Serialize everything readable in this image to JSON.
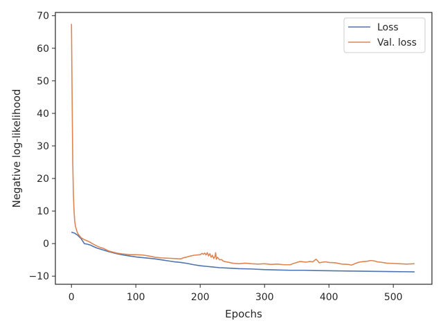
{
  "chart_data": {
    "type": "line",
    "title": "",
    "xlabel": "Epochs",
    "ylabel": "Negative log-likelihood",
    "xlim": [
      -25,
      560
    ],
    "ylim": [
      -12.5,
      71
    ],
    "xticks": [
      "0",
      "100",
      "200",
      "300",
      "400",
      "500"
    ],
    "xtick_values": [
      0,
      100,
      200,
      300,
      400,
      500
    ],
    "yticks": [
      "−10",
      "0",
      "10",
      "20",
      "30",
      "40",
      "50",
      "60",
      "70"
    ],
    "ytick_values": [
      -10,
      0,
      10,
      20,
      30,
      40,
      50,
      60,
      70
    ],
    "grid": false,
    "legend_position": "upper right",
    "series": [
      {
        "name": "Loss",
        "color": "#4c72b0",
        "points": [
          [
            0,
            3.5
          ],
          [
            5,
            3.2
          ],
          [
            10,
            2.5
          ],
          [
            15,
            1.5
          ],
          [
            20,
            0
          ],
          [
            25,
            -0.2
          ],
          [
            30,
            -0.5
          ],
          [
            35,
            -1.0
          ],
          [
            40,
            -1.4
          ],
          [
            50,
            -2.0
          ],
          [
            60,
            -2.6
          ],
          [
            70,
            -3.1
          ],
          [
            80,
            -3.5
          ],
          [
            90,
            -3.8
          ],
          [
            100,
            -4.1
          ],
          [
            110,
            -4.3
          ],
          [
            120,
            -4.5
          ],
          [
            130,
            -4.7
          ],
          [
            140,
            -5.0
          ],
          [
            150,
            -5.3
          ],
          [
            160,
            -5.6
          ],
          [
            170,
            -5.8
          ],
          [
            180,
            -6.1
          ],
          [
            190,
            -6.5
          ],
          [
            200,
            -6.8
          ],
          [
            210,
            -7.0
          ],
          [
            220,
            -7.2
          ],
          [
            230,
            -7.4
          ],
          [
            240,
            -7.5
          ],
          [
            250,
            -7.6
          ],
          [
            260,
            -7.7
          ],
          [
            280,
            -7.8
          ],
          [
            300,
            -8.0
          ],
          [
            320,
            -8.1
          ],
          [
            340,
            -8.2
          ],
          [
            360,
            -8.2
          ],
          [
            380,
            -8.3
          ],
          [
            400,
            -8.35
          ],
          [
            420,
            -8.4
          ],
          [
            440,
            -8.45
          ],
          [
            460,
            -8.5
          ],
          [
            480,
            -8.55
          ],
          [
            500,
            -8.6
          ],
          [
            520,
            -8.65
          ],
          [
            533,
            -8.7
          ]
        ]
      },
      {
        "name": "Val. loss",
        "color": "#dd8452",
        "points": [
          [
            0,
            67.5
          ],
          [
            1,
            45
          ],
          [
            2,
            25
          ],
          [
            3,
            15
          ],
          [
            4,
            10
          ],
          [
            5,
            7
          ],
          [
            6,
            5.5
          ],
          [
            8,
            4
          ],
          [
            10,
            3
          ],
          [
            15,
            1.8
          ],
          [
            20,
            1.2
          ],
          [
            25,
            0.8
          ],
          [
            30,
            0.3
          ],
          [
            35,
            -0.3
          ],
          [
            40,
            -0.8
          ],
          [
            45,
            -1.2
          ],
          [
            50,
            -1.5
          ],
          [
            55,
            -2.0
          ],
          [
            60,
            -2.4
          ],
          [
            70,
            -2.9
          ],
          [
            80,
            -3.2
          ],
          [
            90,
            -3.4
          ],
          [
            100,
            -3.4
          ],
          [
            110,
            -3.5
          ],
          [
            120,
            -3.8
          ],
          [
            130,
            -4.2
          ],
          [
            140,
            -4.4
          ],
          [
            150,
            -4.5
          ],
          [
            160,
            -4.6
          ],
          [
            170,
            -4.7
          ],
          [
            175,
            -4.3
          ],
          [
            180,
            -4.1
          ],
          [
            185,
            -3.8
          ],
          [
            190,
            -3.6
          ],
          [
            195,
            -3.5
          ],
          [
            200,
            -3.4
          ],
          [
            203,
            -3.0
          ],
          [
            205,
            -3.3
          ],
          [
            207,
            -2.9
          ],
          [
            209,
            -3.5
          ],
          [
            211,
            -2.8
          ],
          [
            213,
            -3.8
          ],
          [
            215,
            -3.1
          ],
          [
            217,
            -4.2
          ],
          [
            219,
            -3.6
          ],
          [
            221,
            -4.6
          ],
          [
            223,
            -3.9
          ],
          [
            224,
            -2.8
          ],
          [
            225,
            -4.8
          ],
          [
            227,
            -4.2
          ],
          [
            230,
            -5.0
          ],
          [
            233,
            -4.9
          ],
          [
            236,
            -5.4
          ],
          [
            240,
            -5.6
          ],
          [
            245,
            -5.8
          ],
          [
            250,
            -6.0
          ],
          [
            255,
            -6.1
          ],
          [
            260,
            -6.2
          ],
          [
            270,
            -6.0
          ],
          [
            280,
            -6.2
          ],
          [
            290,
            -6.3
          ],
          [
            300,
            -6.2
          ],
          [
            310,
            -6.4
          ],
          [
            320,
            -6.3
          ],
          [
            330,
            -6.5
          ],
          [
            340,
            -6.5
          ],
          [
            345,
            -6.1
          ],
          [
            350,
            -5.8
          ],
          [
            355,
            -5.5
          ],
          [
            360,
            -5.6
          ],
          [
            365,
            -5.7
          ],
          [
            370,
            -5.5
          ],
          [
            375,
            -5.6
          ],
          [
            380,
            -4.8
          ],
          [
            382,
            -5.2
          ],
          [
            385,
            -5.9
          ],
          [
            390,
            -5.7
          ],
          [
            395,
            -5.6
          ],
          [
            400,
            -5.8
          ],
          [
            410,
            -5.9
          ],
          [
            420,
            -6.3
          ],
          [
            430,
            -6.4
          ],
          [
            435,
            -6.6
          ],
          [
            440,
            -6.2
          ],
          [
            445,
            -5.8
          ],
          [
            450,
            -5.6
          ],
          [
            455,
            -5.5
          ],
          [
            460,
            -5.4
          ],
          [
            465,
            -5.2
          ],
          [
            470,
            -5.3
          ],
          [
            475,
            -5.6
          ],
          [
            480,
            -5.7
          ],
          [
            490,
            -6.0
          ],
          [
            500,
            -6.1
          ],
          [
            510,
            -6.2
          ],
          [
            520,
            -6.3
          ],
          [
            533,
            -6.2
          ]
        ]
      }
    ]
  }
}
